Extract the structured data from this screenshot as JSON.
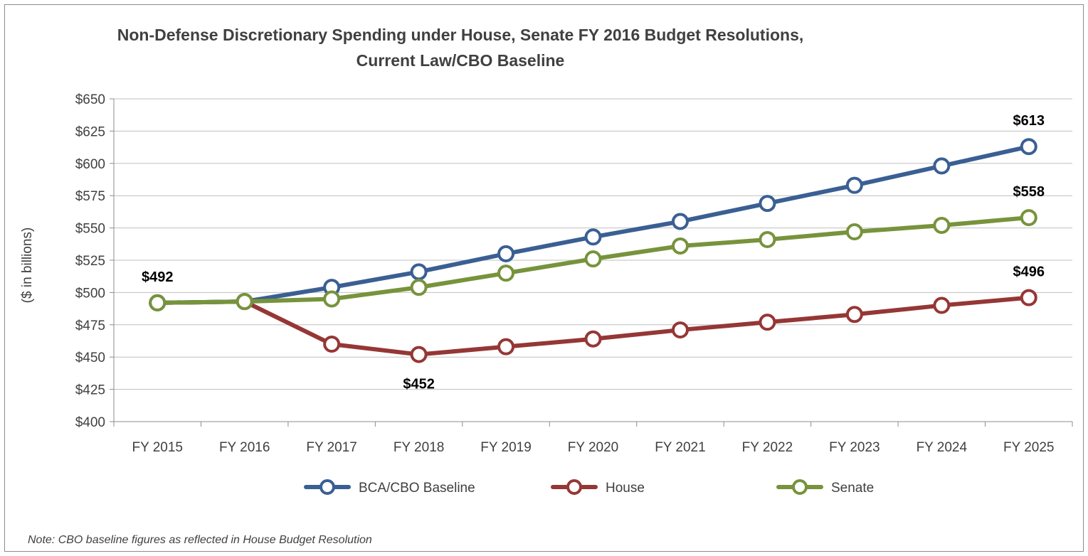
{
  "chart_data": {
    "type": "line",
    "title_lines": [
      "Non-Defense Discretionary Spending under House, Senate FY 2016 Budget Resolutions,",
      "Current Law/CBO Baseline"
    ],
    "ylabel": "($ in billions)",
    "xlabel": "",
    "categories": [
      "FY 2015",
      "FY 2016",
      "FY 2017",
      "FY 2018",
      "FY 2019",
      "FY 2020",
      "FY 2021",
      "FY 2022",
      "FY 2023",
      "FY 2024",
      "FY 2025"
    ],
    "ylim": [
      400,
      650
    ],
    "yticks": [
      400,
      425,
      450,
      475,
      500,
      525,
      550,
      575,
      600,
      625,
      650
    ],
    "ytick_labels": [
      "$400",
      "$425",
      "$450",
      "$475",
      "$500",
      "$525",
      "$550",
      "$575",
      "$600",
      "$625",
      "$650"
    ],
    "grid": true,
    "legend_position": "bottom",
    "series": [
      {
        "name": "BCA/CBO Baseline",
        "color": "#3a5f93",
        "values": [
          492,
          493,
          504,
          516,
          530,
          543,
          555,
          569,
          583,
          598,
          613
        ]
      },
      {
        "name": "House",
        "color": "#953735",
        "values": [
          492,
          493,
          460,
          452,
          458,
          464,
          471,
          477,
          483,
          490,
          496
        ]
      },
      {
        "name": "Senate",
        "color": "#77933c",
        "values": [
          492,
          493,
          495,
          504,
          515,
          526,
          536,
          541,
          547,
          552,
          558
        ]
      }
    ],
    "data_labels": [
      {
        "text": "$492",
        "series": 1,
        "index": 0,
        "position": "above"
      },
      {
        "text": "$452",
        "series": 1,
        "index": 3,
        "position": "below"
      },
      {
        "text": "$613",
        "series": 0,
        "index": 10,
        "position": "above"
      },
      {
        "text": "$558",
        "series": 2,
        "index": 10,
        "position": "above"
      },
      {
        "text": "$496",
        "series": 1,
        "index": 10,
        "position": "above"
      }
    ],
    "note": "Note: CBO baseline figures as reflected in House Budget Resolution"
  }
}
